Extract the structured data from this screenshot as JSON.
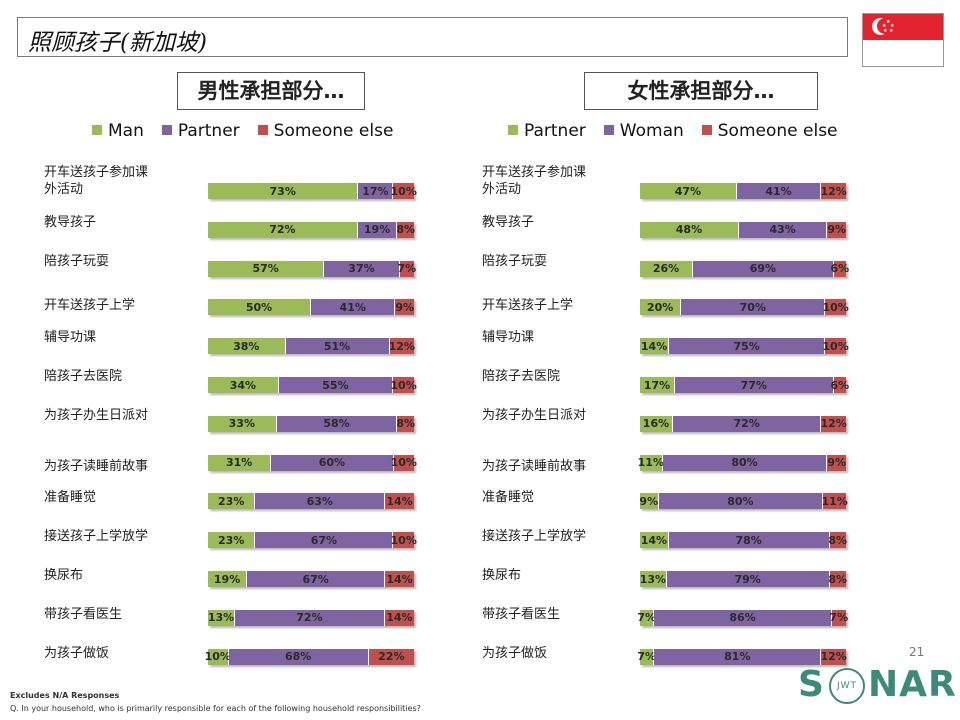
{
  "page": {
    "title": "照顾孩子(新加坡)",
    "page_number": "21",
    "footnote_bold": "Excludes N/A Responses",
    "footnote": "Q. In your household, who is primarily responsible for each of the following household responsibilities?",
    "logo_left": "S",
    "logo_right": "NAR",
    "logo_inner": "JWT"
  },
  "flag": {
    "red": "#e1242d",
    "white": "#ffffff"
  },
  "colors": {
    "green": "#9bbb59",
    "purple": "#8064a2",
    "red": "#c0504d"
  },
  "chart_data": [
    {
      "type": "bar",
      "orientation": "horizontal-stacked-100",
      "title": "男性承担部分…",
      "legend": [
        "Man",
        "Partner",
        "Someone else"
      ],
      "categories": [
        "开车送孩子参加课外活动",
        "教导孩子",
        "陪孩子玩耍",
        "开车送孩子上学",
        "辅导功课",
        "陪孩子去医院",
        "为孩子办生日派对",
        "为孩子读睡前故事",
        "准备睡觉",
        "接送孩子上学放学",
        "换尿布",
        "带孩子看医生",
        "为孩子做饭"
      ],
      "category_lines": [
        [
          "开车送孩子参加课",
          "外活动"
        ],
        [
          "教导孩子"
        ],
        [
          "陪孩子玩耍"
        ],
        [
          "开车送孩子上学"
        ],
        [
          "辅导功课"
        ],
        [
          "陪孩子去医院"
        ],
        [
          "为孩子办生日派对"
        ],
        [
          "为孩子读睡前故事"
        ],
        [
          "准备睡觉"
        ],
        [
          "接送孩子上学放学"
        ],
        [
          "换尿布"
        ],
        [
          "带孩子看医生"
        ],
        [
          "为孩子做饭"
        ]
      ],
      "series": [
        {
          "name": "Man",
          "values": [
            73,
            72,
            57,
            50,
            38,
            34,
            33,
            31,
            23,
            23,
            19,
            13,
            10
          ]
        },
        {
          "name": "Partner",
          "values": [
            17,
            19,
            37,
            41,
            51,
            55,
            58,
            60,
            63,
            67,
            67,
            72,
            68
          ]
        },
        {
          "name": "Someone else",
          "values": [
            10,
            8,
            7,
            9,
            12,
            10,
            8,
            10,
            14,
            10,
            14,
            14,
            22
          ]
        }
      ],
      "unit": "%"
    },
    {
      "type": "bar",
      "orientation": "horizontal-stacked-100",
      "title": "女性承担部分…",
      "legend": [
        "Partner",
        "Woman",
        "Someone else"
      ],
      "categories": [
        "开车送孩子参加课外活动",
        "教导孩子",
        "陪孩子玩耍",
        "开车送孩子上学",
        "辅导功课",
        "陪孩子去医院",
        "为孩子办生日派对",
        "为孩子读睡前故事",
        "准备睡觉",
        "接送孩子上学放学",
        "换尿布",
        "带孩子看医生",
        "为孩子做饭"
      ],
      "category_lines": [
        [
          "开车送孩子参加课",
          "外活动"
        ],
        [
          "教导孩子"
        ],
        [
          "陪孩子玩耍"
        ],
        [
          "开车送孩子上学"
        ],
        [
          "辅导功课"
        ],
        [
          "陪孩子去医院"
        ],
        [
          "为孩子办生日派对"
        ],
        [
          "为孩子读睡前故事"
        ],
        [
          "准备睡觉"
        ],
        [
          "接送孩子上学放学"
        ],
        [
          "换尿布"
        ],
        [
          "带孩子看医生"
        ],
        [
          "为孩子做饭"
        ]
      ],
      "series": [
        {
          "name": "Partner",
          "values": [
            47,
            48,
            26,
            20,
            14,
            17,
            16,
            11,
            9,
            14,
            13,
            7,
            7
          ]
        },
        {
          "name": "Woman",
          "values": [
            41,
            43,
            69,
            70,
            75,
            77,
            72,
            80,
            80,
            78,
            79,
            86,
            81
          ]
        },
        {
          "name": "Someone else",
          "values": [
            12,
            9,
            6,
            10,
            10,
            6,
            12,
            9,
            11,
            8,
            8,
            7,
            12
          ]
        }
      ],
      "unit": "%"
    }
  ]
}
